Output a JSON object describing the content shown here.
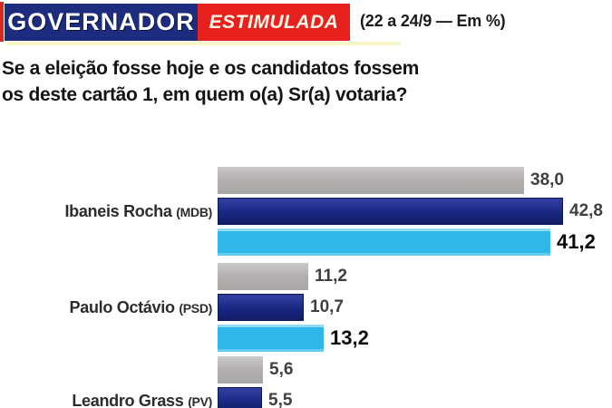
{
  "header": {
    "category_label": "GOVERNADOR",
    "type_label": "ESTIMULADA",
    "period_label": "(22 a 24/9 — Em %)",
    "category_bg": "#1e2c80",
    "type_bg": "#e7211d"
  },
  "question": {
    "line1": "Se a eleição fosse hoje e os candidatos fossem",
    "line2": "os deste cartão 1, em quem o(a) Sr(a) votaria?"
  },
  "chart_data": {
    "type": "bar",
    "orientation": "horizontal",
    "unit": "%",
    "decimal_separator": ",",
    "series_colors": {
      "older": "#b3b1b0",
      "previous": "#1a2780",
      "current_22a24_9": "#2fb7e9"
    },
    "groups": [
      {
        "candidate": "Ibaneis Rocha",
        "party": "(MDB)",
        "values": [
          38.0,
          42.8,
          41.2
        ],
        "value_labels": [
          "38,0",
          "42,8",
          "41,2"
        ]
      },
      {
        "candidate": "Paulo Octávio",
        "party": "(PSD)",
        "values": [
          11.2,
          10.7,
          13.2
        ],
        "value_labels": [
          "11,2",
          "10,7",
          "13,2"
        ]
      },
      {
        "candidate": "Leandro Grass",
        "party": "(PV)",
        "values": [
          5.6,
          5.5
        ],
        "value_labels": [
          "5,6",
          "5,5"
        ]
      }
    ]
  }
}
